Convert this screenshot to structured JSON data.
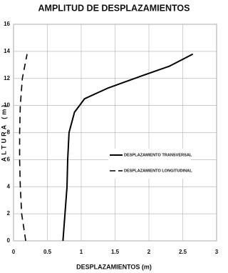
{
  "chart_data": {
    "type": "line",
    "title": "AMPLITUD DE DESPLAZAMIENTOS",
    "x_label": "DESPLAZAMIENTOS (m)",
    "y_label": "ALTURA (m)",
    "xlim": [
      0,
      3
    ],
    "xticks": [
      0,
      0.5,
      1,
      1.5,
      2,
      2.5,
      3
    ],
    "ylim": [
      0,
      16
    ],
    "yticks": [
      0,
      2,
      4,
      6,
      8,
      10,
      12,
      14,
      16
    ],
    "grid": true,
    "legend": "center-right",
    "series": [
      {
        "name": "DESPLAZAMIENTO TRANSVERSAL",
        "color": "#000000",
        "style": "solid",
        "x": [
          0.73,
          0.76,
          0.79,
          0.8,
          0.82,
          0.9,
          1.05,
          1.4,
          1.9,
          2.3,
          2.65
        ],
        "values": [
          0,
          2,
          4,
          6,
          8,
          9.5,
          10.5,
          11.3,
          12.2,
          12.9,
          13.8
        ]
      },
      {
        "name": "DESPLAZAMIENTO LONGITUDINAL",
        "color": "#000000",
        "style": "dashed",
        "x": [
          0.18,
          0.12,
          0.1,
          0.09,
          0.09,
          0.1,
          0.13,
          0.2
        ],
        "values": [
          0,
          2,
          4,
          6,
          8,
          10,
          12,
          13.8
        ]
      }
    ]
  }
}
